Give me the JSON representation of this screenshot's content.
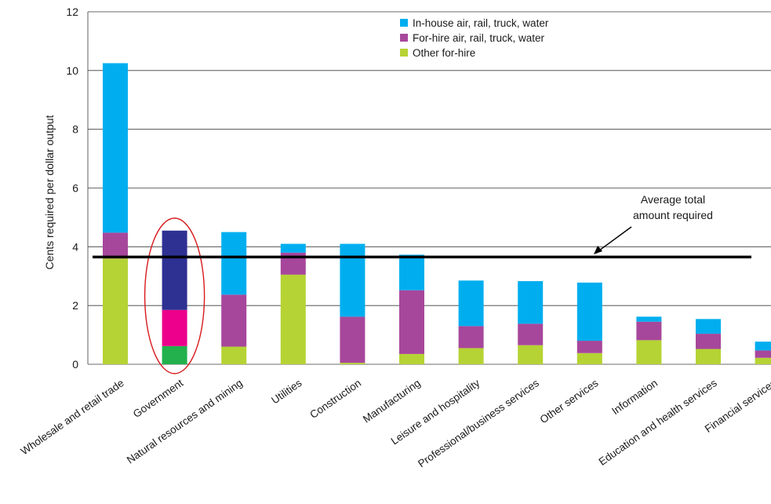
{
  "chart_data": {
    "type": "bar",
    "stacked": true,
    "ylabel": "Cents required per dollar output",
    "ylim": [
      0,
      12
    ],
    "yticks": [
      0,
      2,
      4,
      6,
      8,
      10,
      12
    ],
    "grid": "horizontal",
    "legend_position": "top-center",
    "categories": [
      "Wholesale and retail trade",
      "Government",
      "Natural resources and mining",
      "Utilities",
      "Construction",
      "Manufacturing",
      "Leisure and hospitality",
      "Professional/business services",
      "Other services",
      "Information",
      "Education and health services",
      "Financial services"
    ],
    "series": [
      {
        "name": "Other for-hire",
        "color": "#b5d334",
        "values": [
          3.6,
          0.62,
          0.6,
          3.05,
          0.05,
          0.35,
          0.55,
          0.65,
          0.38,
          0.82,
          0.52,
          0.22
        ]
      },
      {
        "name": "For-hire air, rail, truck, water",
        "color": "#a7479b",
        "values": [
          0.88,
          1.23,
          1.77,
          0.75,
          1.57,
          2.17,
          0.75,
          0.73,
          0.42,
          0.63,
          0.52,
          0.25
        ]
      },
      {
        "name": "In-house air, rail, truck, water",
        "color": "#00aeef",
        "values": [
          5.77,
          2.7,
          2.13,
          0.3,
          2.48,
          1.21,
          1.55,
          1.45,
          1.98,
          0.17,
          0.5,
          0.3
        ]
      }
    ],
    "highlight": {
      "category": "Government",
      "colors": [
        "#22b14c",
        "#ec008c",
        "#2e3192"
      ],
      "circle_color": "#d7191c"
    },
    "average_line": {
      "value": 3.65,
      "color": "#000000"
    },
    "annotation": {
      "lines": [
        "Average total",
        "amount required"
      ]
    }
  }
}
